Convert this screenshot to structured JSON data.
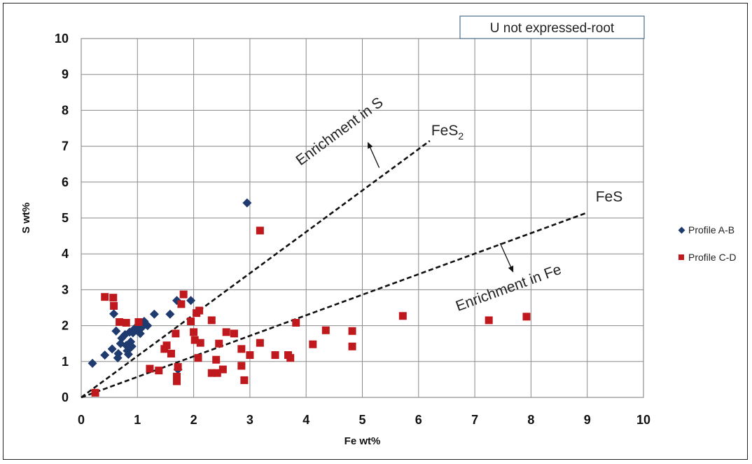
{
  "chart_data": {
    "type": "scatter",
    "title": "U not expressed-root",
    "xlabel": "Fe wt%",
    "ylabel": "S wt%",
    "xlim": [
      0,
      10
    ],
    "ylim": [
      0,
      10
    ],
    "x_ticks": [
      "0",
      "1",
      "2",
      "3",
      "4",
      "5",
      "6",
      "7",
      "8",
      "9",
      "10"
    ],
    "y_ticks": [
      "0",
      "1",
      "2",
      "3",
      "4",
      "5",
      "6",
      "7",
      "8",
      "9",
      "10"
    ],
    "grid": true,
    "legend_position": "right",
    "series": [
      {
        "name": "Profile A-B",
        "marker": "diamond",
        "color": "#1f3a6e",
        "points": [
          [
            0.2,
            0.95
          ],
          [
            0.42,
            1.18
          ],
          [
            0.55,
            1.35
          ],
          [
            0.58,
            2.33
          ],
          [
            0.62,
            1.85
          ],
          [
            0.65,
            1.1
          ],
          [
            0.66,
            1.22
          ],
          [
            0.7,
            1.5
          ],
          [
            0.72,
            1.65
          ],
          [
            0.78,
            1.75
          ],
          [
            0.8,
            1.45
          ],
          [
            0.82,
            1.3
          ],
          [
            0.84,
            1.2
          ],
          [
            0.86,
            1.82
          ],
          [
            0.88,
            1.55
          ],
          [
            0.9,
            1.42
          ],
          [
            0.92,
            1.8
          ],
          [
            0.95,
            1.92
          ],
          [
            1.0,
            1.85
          ],
          [
            1.02,
            2.0
          ],
          [
            1.05,
            1.78
          ],
          [
            1.08,
            1.95
          ],
          [
            1.12,
            2.12
          ],
          [
            1.18,
            2.0
          ],
          [
            1.3,
            2.32
          ],
          [
            1.58,
            2.32
          ],
          [
            1.7,
            2.7
          ],
          [
            1.95,
            2.7
          ],
          [
            2.95,
            5.42
          ],
          [
            1.72,
            0.78
          ]
        ]
      },
      {
        "name": "Profile C-D",
        "marker": "square",
        "color": "#c0191d",
        "points": [
          [
            0.25,
            0.13
          ],
          [
            0.42,
            2.8
          ],
          [
            0.57,
            2.78
          ],
          [
            0.58,
            2.55
          ],
          [
            0.68,
            2.1
          ],
          [
            0.8,
            2.08
          ],
          [
            1.02,
            2.1
          ],
          [
            1.22,
            0.8
          ],
          [
            1.38,
            0.75
          ],
          [
            1.48,
            1.35
          ],
          [
            1.52,
            1.45
          ],
          [
            1.6,
            1.22
          ],
          [
            1.68,
            1.78
          ],
          [
            1.7,
            0.58
          ],
          [
            1.7,
            0.45
          ],
          [
            1.72,
            0.85
          ],
          [
            1.78,
            2.6
          ],
          [
            1.82,
            2.87
          ],
          [
            1.95,
            2.12
          ],
          [
            2.0,
            1.82
          ],
          [
            2.02,
            1.6
          ],
          [
            2.05,
            2.35
          ],
          [
            2.08,
            1.1
          ],
          [
            2.1,
            2.42
          ],
          [
            2.12,
            1.52
          ],
          [
            2.32,
            2.15
          ],
          [
            2.32,
            0.68
          ],
          [
            2.4,
            1.05
          ],
          [
            2.42,
            0.68
          ],
          [
            2.45,
            1.5
          ],
          [
            2.52,
            0.78
          ],
          [
            2.58,
            1.82
          ],
          [
            2.72,
            1.78
          ],
          [
            2.85,
            1.35
          ],
          [
            2.85,
            0.88
          ],
          [
            2.9,
            0.48
          ],
          [
            3.0,
            1.18
          ],
          [
            3.18,
            1.52
          ],
          [
            3.18,
            4.65
          ],
          [
            3.45,
            1.18
          ],
          [
            3.68,
            1.18
          ],
          [
            3.72,
            1.1
          ],
          [
            3.82,
            2.08
          ],
          [
            4.12,
            1.48
          ],
          [
            4.35,
            1.87
          ],
          [
            4.82,
            1.85
          ],
          [
            4.82,
            1.42
          ],
          [
            5.72,
            2.27
          ],
          [
            7.25,
            2.15
          ],
          [
            7.92,
            2.25
          ]
        ]
      }
    ],
    "reference_lines": [
      {
        "label_main": "FeS",
        "label_sub": "2",
        "from": [
          0,
          0
        ],
        "to": [
          6.2,
          7.15
        ]
      },
      {
        "label_main": "FeS",
        "label_sub": "",
        "from": [
          0,
          0
        ],
        "to": [
          9.0,
          5.15
        ]
      }
    ],
    "annotations": [
      {
        "text": "Enrichment in S"
      },
      {
        "text": "Enrichment in Fe"
      }
    ]
  }
}
